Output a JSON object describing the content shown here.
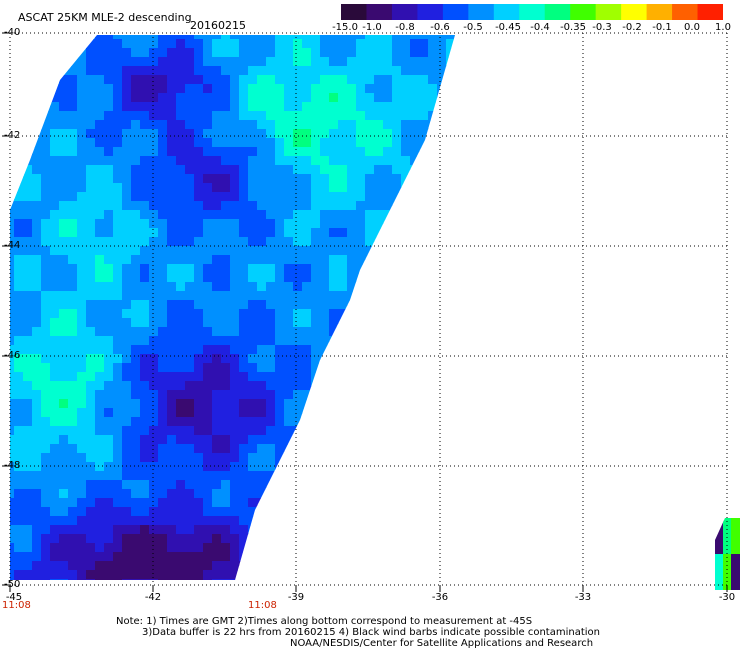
{
  "header": {
    "title": "ASCAT 25KM MLE-2 descending",
    "date": "20160215"
  },
  "colorbar": {
    "labels": [
      "-15.0",
      "-1.0",
      "-0.8",
      "-0.6",
      "-0.5",
      "-0.45",
      "-0.4",
      "-0.35",
      "-0.3",
      "-0.2",
      "-0.1",
      "0.0",
      "1.0"
    ],
    "colors": [
      "#2a0a3a",
      "#3a0a70",
      "#3010b0",
      "#2020e0",
      "#0050ff",
      "#0090ff",
      "#00d0ff",
      "#00ffd0",
      "#00ff80",
      "#40ff00",
      "#a0ff00",
      "#ffff00",
      "#ffb000",
      "#ff6000",
      "#ff2000"
    ]
  },
  "axes": {
    "y_ticks": [
      "-40",
      "-42",
      "-44",
      "-46",
      "-48",
      "-50"
    ],
    "x_ticks": [
      "-45",
      "-42",
      "-39",
      "-36",
      "-33",
      "-30"
    ],
    "time_labels": [
      "11:08",
      "11:08"
    ]
  },
  "notes": {
    "line1": "Note: 1) Times are GMT 2)Times along bottom correspond to measurement at -45S",
    "line2": "3)Data buffer is 22 hrs from 20160215 4) Black wind barbs indicate possible contamination",
    "line3": "NOAA/NESDIS/Center for Satellite Applications and Research"
  }
}
